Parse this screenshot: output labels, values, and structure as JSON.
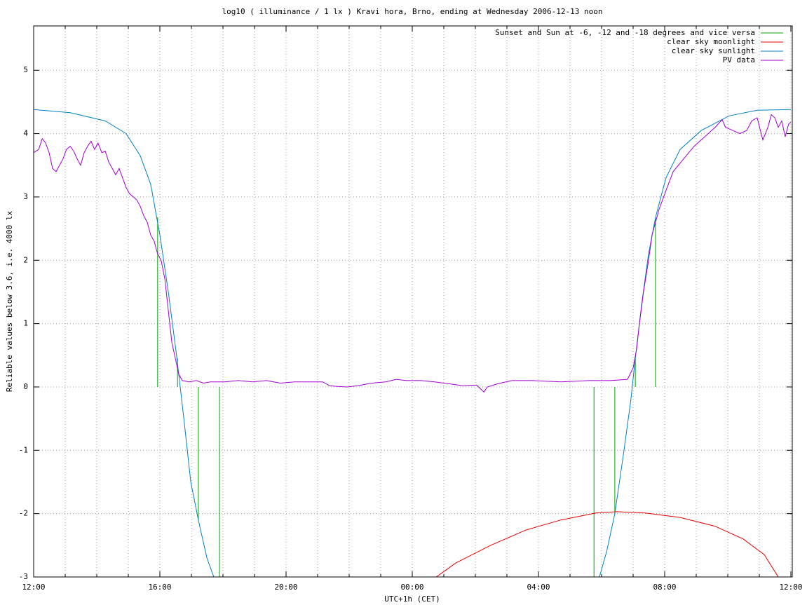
{
  "chart_data": {
    "type": "line",
    "title": "log10 ( illuminance / 1 lx ) Kravi hora, Brno, ending at Wednesday 2006-12-13 noon",
    "x_label": "UTC+1h (CET)",
    "y_label": "Reliable values below 3.6, i.e. 4000 lx",
    "xlim": [
      0,
      24
    ],
    "ylim": [
      -3,
      5.7
    ],
    "xticks": [
      {
        "value": 0,
        "label": "12:00"
      },
      {
        "value": 4,
        "label": "16:00"
      },
      {
        "value": 8,
        "label": "20:00"
      },
      {
        "value": 12,
        "label": "00:00"
      },
      {
        "value": 16,
        "label": "04:00"
      },
      {
        "value": 20,
        "label": "08:00"
      },
      {
        "value": 24,
        "label": "12:00"
      }
    ],
    "x_minor_ticks": [
      1,
      2,
      3,
      5,
      6,
      7,
      9,
      10,
      11,
      13,
      14,
      15,
      17,
      18,
      19,
      21,
      22,
      23
    ],
    "yticks": [
      -3,
      -2,
      -1,
      0,
      1,
      2,
      3,
      4,
      5
    ],
    "grid": true,
    "legend": "top-right",
    "series": [
      {
        "name": "Sunset and Sun at -6, -12 and -18 degrees and vice versa",
        "color": "#00a000",
        "style": "impulses",
        "x": [
          3.93,
          4.56,
          5.22,
          5.89,
          17.76,
          18.42,
          19.07,
          19.71
        ],
        "values": [
          2.68,
          0.45,
          -2.1,
          -3,
          -3,
          -2.0,
          0.45,
          2.68
        ]
      },
      {
        "name": "clear sky moonlight",
        "color": "#e00000",
        "style": "line",
        "x": [
          12.76,
          13.38,
          14.49,
          15.6,
          16.71,
          17.82,
          18.49,
          19.38,
          20.49,
          21.6,
          22.49,
          23.16,
          23.6
        ],
        "values": [
          -3,
          -2.78,
          -2.5,
          -2.26,
          -2.1,
          -1.99,
          -1.97,
          -1.99,
          -2.06,
          -2.2,
          -2.4,
          -2.65,
          -3
        ]
      },
      {
        "name": "clear sky sunlight",
        "color": "#0080c0",
        "style": "line",
        "x": [
          0,
          1.16,
          2.27,
          2.93,
          3.38,
          3.71,
          4.0,
          4.27,
          4.53,
          4.76,
          4.98,
          5.22,
          5.49,
          5.71,
          11.8,
          17.93,
          18.16,
          18.42,
          18.71,
          18.93,
          19.07,
          19.27,
          19.49,
          19.71,
          20.04,
          20.49,
          21.16,
          22.04,
          22.93,
          24.0
        ],
        "values": [
          4.38,
          4.33,
          4.2,
          4.0,
          3.65,
          3.2,
          2.4,
          1.5,
          0.5,
          -0.5,
          -1.5,
          -2.1,
          -2.7,
          -3,
          null,
          -3,
          -2.6,
          -2.0,
          -1.0,
          -0.2,
          0.45,
          1.3,
          2.1,
          2.68,
          3.3,
          3.75,
          4.05,
          4.28,
          4.37,
          4.38
        ]
      },
      {
        "name": "PV data",
        "color": "#a000d0",
        "style": "line",
        "x": [
          0,
          0.16,
          0.27,
          0.38,
          0.49,
          0.6,
          0.71,
          0.82,
          0.93,
          1.04,
          1.16,
          1.27,
          1.38,
          1.49,
          1.6,
          1.71,
          1.82,
          1.93,
          2.04,
          2.16,
          2.27,
          2.38,
          2.49,
          2.6,
          2.71,
          2.82,
          2.93,
          3.04,
          3.16,
          3.27,
          3.38,
          3.49,
          3.6,
          3.71,
          3.82,
          3.93,
          4.04,
          4.16,
          4.27,
          4.38,
          4.49,
          4.6,
          4.71,
          4.93,
          5.16,
          5.38,
          5.6,
          6.04,
          6.49,
          6.93,
          7.38,
          7.82,
          8.27,
          8.71,
          9.16,
          9.38,
          9.6,
          9.93,
          10.27,
          10.71,
          11.16,
          11.49,
          11.82,
          12.27,
          12.71,
          13.16,
          13.6,
          14.04,
          14.27,
          14.38,
          14.71,
          15.16,
          15.82,
          16.71,
          17.6,
          18.27,
          18.82,
          19.0,
          19.11,
          19.2,
          19.33,
          19.49,
          19.6,
          19.82,
          20.04,
          20.27,
          20.6,
          20.93,
          21.27,
          21.6,
          21.82,
          21.93,
          22.16,
          22.38,
          22.6,
          22.76,
          22.93,
          23.11,
          23.27,
          23.38,
          23.49,
          23.6,
          23.71,
          23.82,
          23.93,
          24.0
        ],
        "values": [
          3.7,
          3.75,
          3.92,
          3.85,
          3.7,
          3.45,
          3.4,
          3.5,
          3.6,
          3.75,
          3.8,
          3.72,
          3.6,
          3.5,
          3.7,
          3.8,
          3.88,
          3.75,
          3.85,
          3.7,
          3.72,
          3.55,
          3.45,
          3.35,
          3.45,
          3.3,
          3.15,
          3.05,
          3.0,
          2.95,
          2.85,
          2.7,
          2.6,
          2.4,
          2.3,
          2.1,
          2.0,
          1.7,
          1.2,
          0.7,
          0.45,
          0.2,
          0.1,
          0.08,
          0.1,
          0.06,
          0.08,
          0.08,
          0.1,
          0.08,
          0.1,
          0.06,
          0.08,
          0.08,
          0.08,
          0.02,
          0.01,
          0.0,
          0.02,
          0.06,
          0.08,
          0.12,
          0.1,
          0.1,
          0.08,
          0.05,
          0.02,
          0.03,
          -0.08,
          0.0,
          0.05,
          0.1,
          0.1,
          0.08,
          0.1,
          0.1,
          0.12,
          0.3,
          0.6,
          1.0,
          1.5,
          2.0,
          2.4,
          2.8,
          3.1,
          3.4,
          3.6,
          3.8,
          3.95,
          4.1,
          4.22,
          4.1,
          4.05,
          4.0,
          4.05,
          4.2,
          4.25,
          3.9,
          4.1,
          4.3,
          4.25,
          4.1,
          4.2,
          3.95,
          4.15,
          4.18
        ]
      }
    ]
  }
}
